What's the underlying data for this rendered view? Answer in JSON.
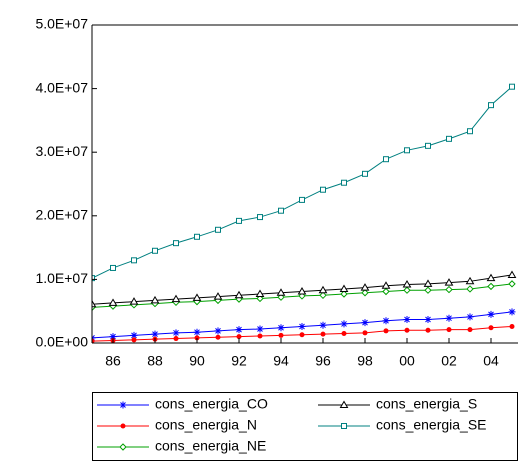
{
  "chart_data": {
    "type": "line",
    "x": [
      1985,
      1986,
      1987,
      1988,
      1989,
      1990,
      1991,
      1992,
      1993,
      1994,
      1995,
      1996,
      1997,
      1998,
      1999,
      2000,
      2001,
      2002,
      2003,
      2004,
      2005
    ],
    "xlim": [
      1985,
      2005.3
    ],
    "xticks": [
      {
        "value": 1986,
        "label": "86"
      },
      {
        "value": 1988,
        "label": "88"
      },
      {
        "value": 1990,
        "label": "90"
      },
      {
        "value": 1992,
        "label": "92"
      },
      {
        "value": 1994,
        "label": "94"
      },
      {
        "value": 1996,
        "label": "96"
      },
      {
        "value": 1998,
        "label": "98"
      },
      {
        "value": 2000,
        "label": "00"
      },
      {
        "value": 2002,
        "label": "02"
      },
      {
        "value": 2004,
        "label": "04"
      }
    ],
    "ylim": [
      0,
      50000000
    ],
    "yticks": [
      {
        "value": 0,
        "label": "0.0E+00"
      },
      {
        "value": 10000000,
        "label": "1.0E+07"
      },
      {
        "value": 20000000,
        "label": "2.0E+07"
      },
      {
        "value": 30000000,
        "label": "3.0E+07"
      },
      {
        "value": 40000000,
        "label": "4.0E+07"
      },
      {
        "value": 50000000,
        "label": "5.0E+07"
      }
    ],
    "series": [
      {
        "name": "cons_energia_CO",
        "color": "#0000ff",
        "marker": "star",
        "values": [
          800000,
          1000000,
          1200000,
          1400000,
          1600000,
          1700000,
          1900000,
          2100000,
          2200000,
          2400000,
          2600000,
          2800000,
          3000000,
          3200000,
          3500000,
          3700000,
          3700000,
          3900000,
          4100000,
          4500000,
          4900000
        ]
      },
      {
        "name": "cons_energia_N",
        "color": "#ff0000",
        "marker": "dot",
        "values": [
          300000,
          400000,
          500000,
          600000,
          700000,
          800000,
          900000,
          1000000,
          1100000,
          1200000,
          1300000,
          1400000,
          1500000,
          1600000,
          1900000,
          2000000,
          2000000,
          2100000,
          2100000,
          2400000,
          2600000
        ]
      },
      {
        "name": "cons_energia_NE",
        "color": "#00a000",
        "marker": "diamond",
        "values": [
          5600000,
          5800000,
          6000000,
          6200000,
          6400000,
          6500000,
          6700000,
          6900000,
          7000000,
          7200000,
          7400000,
          7500000,
          7700000,
          7900000,
          8100000,
          8300000,
          8300000,
          8400000,
          8500000,
          8900000,
          9300000
        ]
      },
      {
        "name": "cons_energia_S",
        "color": "#000000",
        "marker": "triangle",
        "values": [
          6100000,
          6300000,
          6500000,
          6700000,
          6900000,
          7100000,
          7300000,
          7500000,
          7700000,
          7900000,
          8100000,
          8300000,
          8500000,
          8700000,
          9000000,
          9200000,
          9300000,
          9500000,
          9700000,
          10200000,
          10700000
        ]
      },
      {
        "name": "cons_energia_SE",
        "color": "#008080",
        "marker": "square",
        "values": [
          10200000,
          11800000,
          13000000,
          14500000,
          15700000,
          16700000,
          17800000,
          19200000,
          19800000,
          20800000,
          22500000,
          24100000,
          25200000,
          26600000,
          28900000,
          30300000,
          31000000,
          32100000,
          33300000,
          37400000,
          40300000
        ]
      }
    ]
  }
}
